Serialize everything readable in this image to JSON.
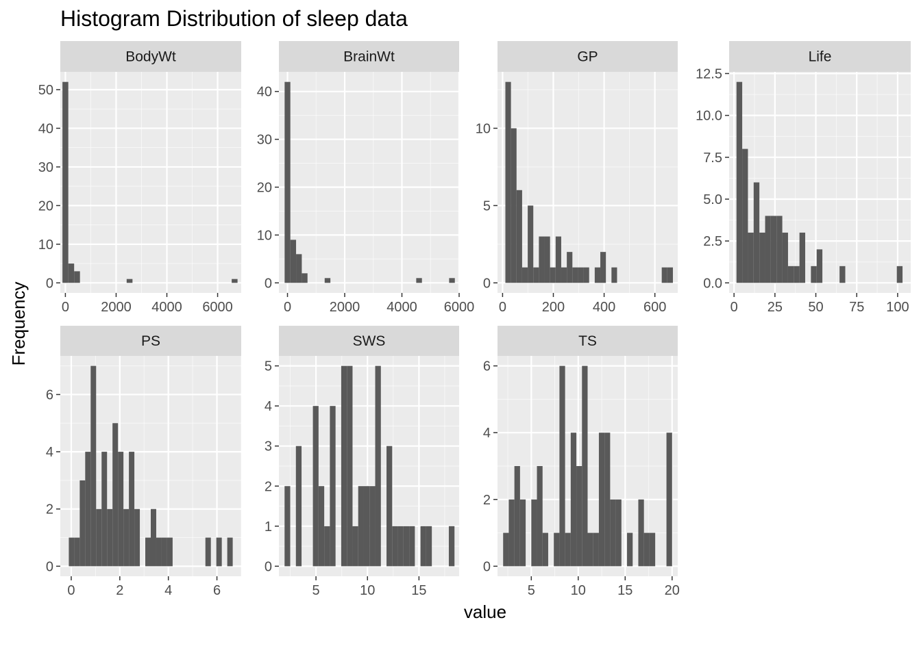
{
  "chart_data": {
    "type": "bar",
    "title": "Histogram Distribution of sleep data",
    "xlabel": "value",
    "ylabel": "Frequency",
    "colors": {
      "bar": "#595959",
      "panel_bg": "#ebebeb",
      "strip_bg": "#d9d9d9",
      "grid_major": "#ffffff",
      "tick_text": "#4d4d4d"
    },
    "panels": [
      {
        "name": "BodyWt",
        "xlim": [
          -200,
          6930
        ],
        "ylim": [
          -2.6,
          54.6
        ],
        "xticks": [
          0,
          2000,
          4000,
          6000
        ],
        "xtick_labels": [
          "0",
          "2000",
          "4000",
          "6000"
        ],
        "yticks": [
          0,
          10,
          20,
          30,
          40,
          50
        ],
        "ytick_labels": [
          "0",
          "10",
          "20",
          "30",
          "40",
          "50"
        ],
        "bars": [
          {
            "x0": -115,
            "x1": 115,
            "count": 52
          },
          {
            "x0": 115,
            "x1": 345,
            "count": 5
          },
          {
            "x0": 345,
            "x1": 575,
            "count": 3
          },
          {
            "x0": 2415,
            "x1": 2645,
            "count": 1
          },
          {
            "x0": 6555,
            "x1": 6785,
            "count": 1
          }
        ]
      },
      {
        "name": "BrainWt",
        "xlim": [
          -300,
          6000
        ],
        "ylim": [
          -2.1,
          44.1
        ],
        "xticks": [
          0,
          2000,
          4000,
          6000
        ],
        "xtick_labels": [
          "0",
          "2000",
          "4000",
          "6000"
        ],
        "yticks": [
          0,
          10,
          20,
          30,
          40
        ],
        "ytick_labels": [
          "0",
          "10",
          "20",
          "30",
          "40"
        ],
        "bars": [
          {
            "x0": -100,
            "x1": 100,
            "count": 42
          },
          {
            "x0": 100,
            "x1": 300,
            "count": 9
          },
          {
            "x0": 300,
            "x1": 500,
            "count": 6
          },
          {
            "x0": 500,
            "x1": 700,
            "count": 2
          },
          {
            "x0": 1300,
            "x1": 1500,
            "count": 1
          },
          {
            "x0": 4500,
            "x1": 4700,
            "count": 1
          },
          {
            "x0": 5650,
            "x1": 5850,
            "count": 1
          }
        ]
      },
      {
        "name": "GP",
        "xlim": [
          -20,
          690
        ],
        "ylim": [
          -0.65,
          13.65
        ],
        "xticks": [
          0,
          200,
          400,
          600
        ],
        "xtick_labels": [
          "0",
          "200",
          "400",
          "600"
        ],
        "yticks": [
          0,
          5,
          10
        ],
        "ytick_labels": [
          "0",
          "5",
          "10"
        ],
        "bars": [
          {
            "x0": 11,
            "x1": 33,
            "count": 13
          },
          {
            "x0": 33,
            "x1": 55,
            "count": 10
          },
          {
            "x0": 55,
            "x1": 77,
            "count": 6
          },
          {
            "x0": 77,
            "x1": 99,
            "count": 1
          },
          {
            "x0": 99,
            "x1": 121,
            "count": 5
          },
          {
            "x0": 121,
            "x1": 143,
            "count": 1
          },
          {
            "x0": 143,
            "x1": 165,
            "count": 3
          },
          {
            "x0": 165,
            "x1": 187,
            "count": 3
          },
          {
            "x0": 187,
            "x1": 209,
            "count": 1
          },
          {
            "x0": 209,
            "x1": 231,
            "count": 3
          },
          {
            "x0": 231,
            "x1": 253,
            "count": 1
          },
          {
            "x0": 253,
            "x1": 275,
            "count": 2
          },
          {
            "x0": 275,
            "x1": 297,
            "count": 1
          },
          {
            "x0": 297,
            "x1": 319,
            "count": 1
          },
          {
            "x0": 319,
            "x1": 341,
            "count": 1
          },
          {
            "x0": 363,
            "x1": 385,
            "count": 1
          },
          {
            "x0": 385,
            "x1": 407,
            "count": 2
          },
          {
            "x0": 429,
            "x1": 451,
            "count": 1
          },
          {
            "x0": 627,
            "x1": 649,
            "count": 1
          },
          {
            "x0": 649,
            "x1": 671,
            "count": 1
          }
        ]
      },
      {
        "name": "Life",
        "xlim": [
          -3,
          108
        ],
        "ylim": [
          -0.6,
          12.6
        ],
        "xticks": [
          0,
          25,
          50,
          75,
          100
        ],
        "xtick_labels": [
          "0",
          "25",
          "50",
          "75",
          "100"
        ],
        "yticks": [
          0,
          2.5,
          5,
          7.5,
          10,
          12.5
        ],
        "ytick_labels": [
          "0.0",
          "2.5",
          "5.0",
          "7.5",
          "10.0",
          "12.5"
        ],
        "bars": [
          {
            "x0": 1.5,
            "x1": 5,
            "count": 12
          },
          {
            "x0": 5,
            "x1": 8.5,
            "count": 8
          },
          {
            "x0": 8.5,
            "x1": 12,
            "count": 3
          },
          {
            "x0": 12,
            "x1": 15.5,
            "count": 6
          },
          {
            "x0": 15.5,
            "x1": 19,
            "count": 3
          },
          {
            "x0": 19,
            "x1": 22.5,
            "count": 4
          },
          {
            "x0": 22.5,
            "x1": 26,
            "count": 4
          },
          {
            "x0": 26,
            "x1": 29.5,
            "count": 4
          },
          {
            "x0": 29.5,
            "x1": 33,
            "count": 3
          },
          {
            "x0": 33,
            "x1": 36.5,
            "count": 1
          },
          {
            "x0": 36.5,
            "x1": 40,
            "count": 1
          },
          {
            "x0": 40,
            "x1": 43.5,
            "count": 3
          },
          {
            "x0": 47,
            "x1": 50.5,
            "count": 1
          },
          {
            "x0": 50.5,
            "x1": 54,
            "count": 2
          },
          {
            "x0": 64.5,
            "x1": 68,
            "count": 1
          },
          {
            "x0": 99.5,
            "x1": 103,
            "count": 1
          }
        ]
      },
      {
        "name": "PS",
        "xlim": [
          -0.45,
          7.0
        ],
        "ylim": [
          -0.35,
          7.35
        ],
        "xticks": [
          0,
          2,
          4,
          6
        ],
        "xtick_labels": [
          "0",
          "2",
          "4",
          "6"
        ],
        "yticks": [
          0,
          2,
          4,
          6
        ],
        "ytick_labels": [
          "0",
          "2",
          "4",
          "6"
        ],
        "bars": [
          {
            "x0": -0.1,
            "x1": 0.125,
            "count": 1
          },
          {
            "x0": 0.125,
            "x1": 0.35,
            "count": 1
          },
          {
            "x0": 0.35,
            "x1": 0.575,
            "count": 3
          },
          {
            "x0": 0.575,
            "x1": 0.8,
            "count": 4
          },
          {
            "x0": 0.8,
            "x1": 1.025,
            "count": 7
          },
          {
            "x0": 1.025,
            "x1": 1.25,
            "count": 2
          },
          {
            "x0": 1.25,
            "x1": 1.475,
            "count": 4
          },
          {
            "x0": 1.475,
            "x1": 1.7,
            "count": 2
          },
          {
            "x0": 1.7,
            "x1": 1.925,
            "count": 5
          },
          {
            "x0": 1.925,
            "x1": 2.15,
            "count": 4
          },
          {
            "x0": 2.15,
            "x1": 2.375,
            "count": 2
          },
          {
            "x0": 2.375,
            "x1": 2.6,
            "count": 4
          },
          {
            "x0": 2.6,
            "x1": 2.825,
            "count": 2
          },
          {
            "x0": 3.05,
            "x1": 3.275,
            "count": 1
          },
          {
            "x0": 3.275,
            "x1": 3.5,
            "count": 2
          },
          {
            "x0": 3.5,
            "x1": 3.725,
            "count": 1
          },
          {
            "x0": 3.725,
            "x1": 3.95,
            "count": 1
          },
          {
            "x0": 3.95,
            "x1": 4.175,
            "count": 1
          },
          {
            "x0": 5.525,
            "x1": 5.75,
            "count": 1
          },
          {
            "x0": 5.975,
            "x1": 6.2,
            "count": 1
          },
          {
            "x0": 6.425,
            "x1": 6.65,
            "count": 1
          }
        ]
      },
      {
        "name": "SWS",
        "xlim": [
          1.4,
          18.9
        ],
        "ylim": [
          -0.25,
          5.25
        ],
        "xticks": [
          5,
          10,
          15
        ],
        "xtick_labels": [
          "5",
          "10",
          "15"
        ],
        "yticks": [
          0,
          1,
          2,
          3,
          4,
          5
        ],
        "ytick_labels": [
          "0",
          "1",
          "2",
          "3",
          "4",
          "5"
        ],
        "bars": [
          {
            "x0": 1.95,
            "x1": 2.5,
            "count": 2
          },
          {
            "x0": 3.05,
            "x1": 3.6,
            "count": 3
          },
          {
            "x0": 4.7,
            "x1": 5.25,
            "count": 4
          },
          {
            "x0": 5.25,
            "x1": 5.8,
            "count": 2
          },
          {
            "x0": 5.8,
            "x1": 6.35,
            "count": 1
          },
          {
            "x0": 6.35,
            "x1": 6.9,
            "count": 4
          },
          {
            "x0": 7.45,
            "x1": 8.0,
            "count": 5
          },
          {
            "x0": 8.0,
            "x1": 8.55,
            "count": 5
          },
          {
            "x0": 8.55,
            "x1": 9.1,
            "count": 1
          },
          {
            "x0": 9.1,
            "x1": 9.65,
            "count": 2
          },
          {
            "x0": 9.65,
            "x1": 10.2,
            "count": 2
          },
          {
            "x0": 10.2,
            "x1": 10.75,
            "count": 2
          },
          {
            "x0": 10.75,
            "x1": 11.3,
            "count": 5
          },
          {
            "x0": 11.85,
            "x1": 12.4,
            "count": 3
          },
          {
            "x0": 12.4,
            "x1": 12.95,
            "count": 1
          },
          {
            "x0": 12.95,
            "x1": 13.5,
            "count": 1
          },
          {
            "x0": 13.5,
            "x1": 14.05,
            "count": 1
          },
          {
            "x0": 14.05,
            "x1": 14.6,
            "count": 1
          },
          {
            "x0": 15.15,
            "x1": 15.7,
            "count": 1
          },
          {
            "x0": 15.7,
            "x1": 16.25,
            "count": 1
          },
          {
            "x0": 17.9,
            "x1": 18.45,
            "count": 1
          }
        ]
      },
      {
        "name": "TS",
        "xlim": [
          1.4,
          20.6
        ],
        "ylim": [
          -0.3,
          6.3
        ],
        "xticks": [
          5,
          10,
          15,
          20
        ],
        "xtick_labels": [
          "5",
          "10",
          "15",
          "20"
        ],
        "yticks": [
          0,
          2,
          4,
          6
        ],
        "ytick_labels": [
          "0",
          "2",
          "4",
          "6"
        ],
        "bars": [
          {
            "x0": 2.0,
            "x1": 2.6,
            "count": 1
          },
          {
            "x0": 2.6,
            "x1": 3.2,
            "count": 2
          },
          {
            "x0": 3.2,
            "x1": 3.8,
            "count": 3
          },
          {
            "x0": 3.8,
            "x1": 4.4,
            "count": 2
          },
          {
            "x0": 5.0,
            "x1": 5.6,
            "count": 2
          },
          {
            "x0": 5.6,
            "x1": 6.2,
            "count": 3
          },
          {
            "x0": 6.2,
            "x1": 6.8,
            "count": 1
          },
          {
            "x0": 7.4,
            "x1": 8.0,
            "count": 1
          },
          {
            "x0": 8.0,
            "x1": 8.6,
            "count": 6
          },
          {
            "x0": 8.6,
            "x1": 9.2,
            "count": 1
          },
          {
            "x0": 9.2,
            "x1": 9.8,
            "count": 4
          },
          {
            "x0": 9.8,
            "x1": 10.4,
            "count": 3
          },
          {
            "x0": 10.4,
            "x1": 11.0,
            "count": 6
          },
          {
            "x0": 11.0,
            "x1": 11.6,
            "count": 1
          },
          {
            "x0": 11.6,
            "x1": 12.2,
            "count": 1
          },
          {
            "x0": 12.2,
            "x1": 12.8,
            "count": 4
          },
          {
            "x0": 12.8,
            "x1": 13.4,
            "count": 4
          },
          {
            "x0": 13.4,
            "x1": 14.0,
            "count": 2
          },
          {
            "x0": 14.0,
            "x1": 14.6,
            "count": 2
          },
          {
            "x0": 15.2,
            "x1": 15.8,
            "count": 1
          },
          {
            "x0": 16.4,
            "x1": 17.0,
            "count": 2
          },
          {
            "x0": 17.0,
            "x1": 17.6,
            "count": 1
          },
          {
            "x0": 17.6,
            "x1": 18.2,
            "count": 1
          },
          {
            "x0": 19.4,
            "x1": 20.0,
            "count": 4
          }
        ]
      }
    ]
  }
}
